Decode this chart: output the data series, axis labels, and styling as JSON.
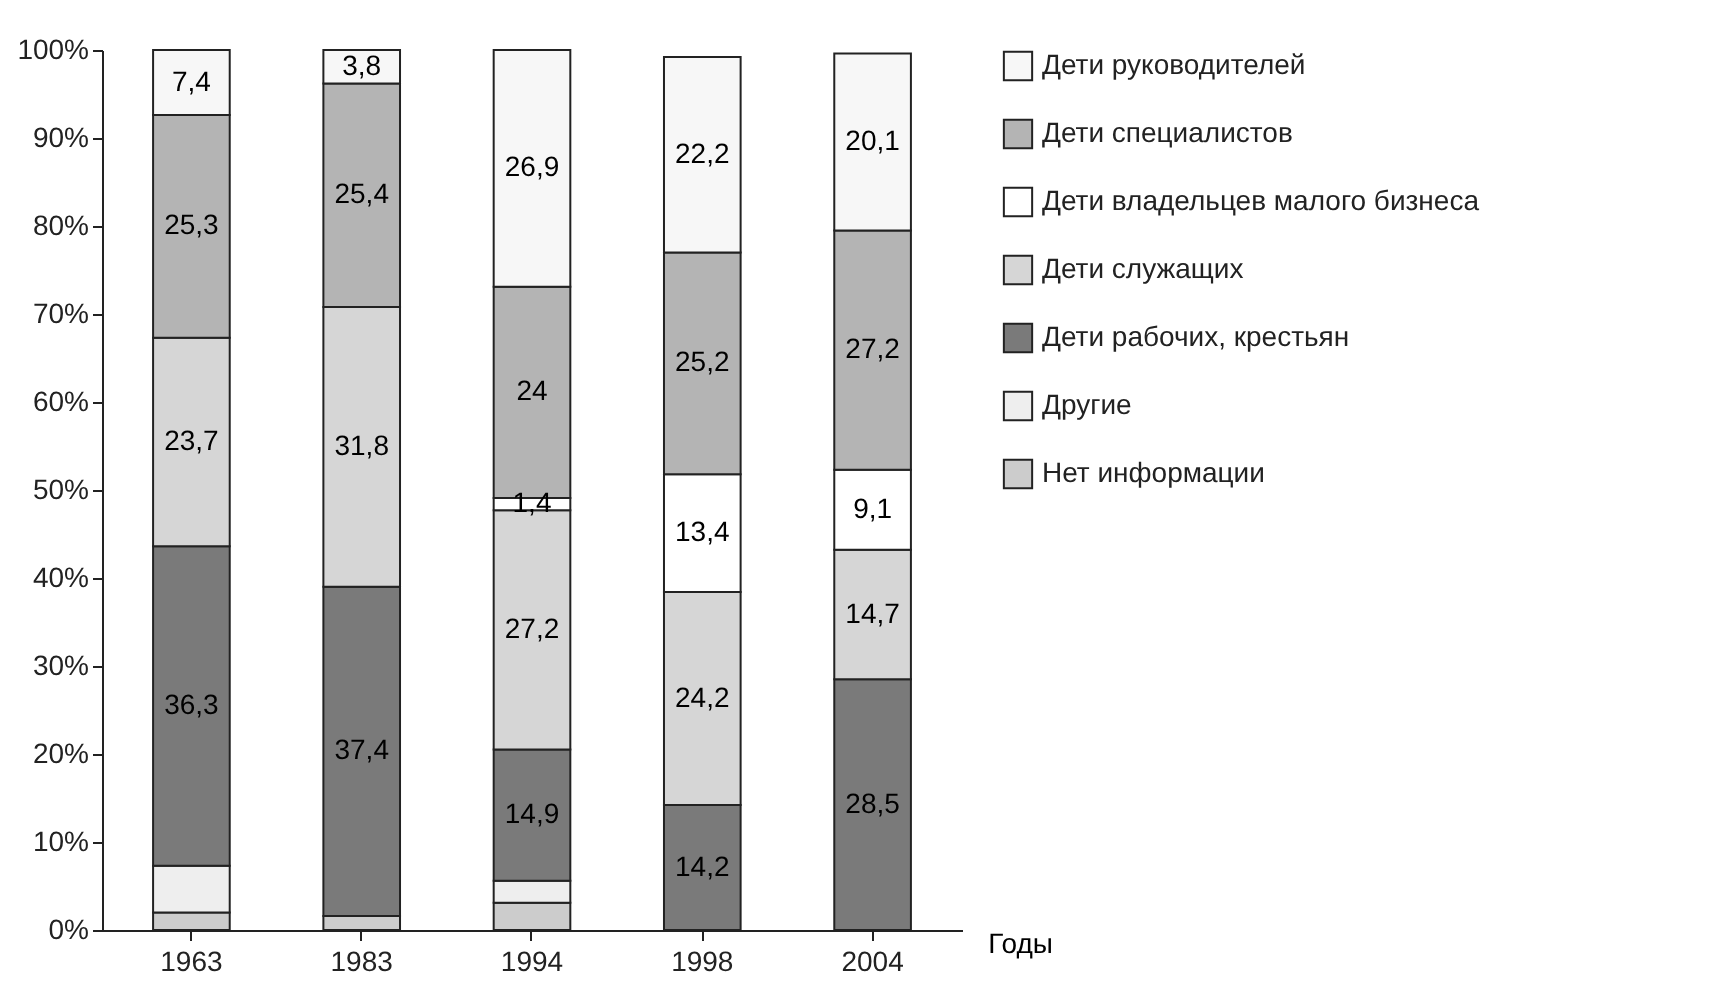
{
  "chart_data": {
    "type": "bar",
    "stacked": true,
    "xlabel": "Годы",
    "categories": [
      "1963",
      "1983",
      "1994",
      "1998",
      "2004"
    ],
    "ylim": [
      0,
      100
    ],
    "yticks": [
      {
        "value": 0,
        "label": "0%"
      },
      {
        "value": 10,
        "label": "10%"
      },
      {
        "value": 20,
        "label": "20%"
      },
      {
        "value": 30,
        "label": "30%"
      },
      {
        "value": 40,
        "label": "40%"
      },
      {
        "value": 50,
        "label": "50%"
      },
      {
        "value": 60,
        "label": "60%"
      },
      {
        "value": 70,
        "label": "70%"
      },
      {
        "value": 80,
        "label": "80%"
      },
      {
        "value": 90,
        "label": "90%"
      },
      {
        "value": 100,
        "label": "100%"
      }
    ],
    "grid": false,
    "legend": "right",
    "series": [
      {
        "name": "Нет информации",
        "color": "#cccccc",
        "values": [
          2.0,
          1.6,
          3.1,
          null,
          null
        ]
      },
      {
        "name": "Другие",
        "color": "#eeeeee",
        "values": [
          5.3,
          null,
          2.5,
          null,
          null
        ]
      },
      {
        "name": "Дети рабочих, крестьян",
        "color": "#7a7a7a",
        "values": [
          36.3,
          37.4,
          14.9,
          14.2,
          28.5
        ],
        "value_labels": [
          "36,3",
          "37,4",
          "14,9",
          "14,2",
          "28,5"
        ]
      },
      {
        "name": "Дети служащих",
        "color": "#d6d6d6",
        "values": [
          23.7,
          31.8,
          27.2,
          24.2,
          14.7
        ],
        "value_labels": [
          "23,7",
          "31,8",
          "27,2",
          "24,2",
          "14,7"
        ]
      },
      {
        "name": "Дети владельцев малого бизнеса",
        "color": "#ffffff",
        "values": [
          null,
          null,
          1.4,
          13.4,
          9.1
        ],
        "value_labels": [
          null,
          null,
          "1,4",
          "13,4",
          "9,1"
        ]
      },
      {
        "name": "Дети специалистов",
        "color": "#b4b4b4",
        "values": [
          25.3,
          25.4,
          24,
          25.2,
          27.2
        ],
        "value_labels": [
          "25,3",
          "25,4",
          "24",
          "25,2",
          "27,2"
        ]
      },
      {
        "name": "Дети руководителей",
        "color": "#f7f7f7",
        "values": [
          7.4,
          3.8,
          26.9,
          22.2,
          20.1
        ],
        "value_labels": [
          "7,4",
          "3,8",
          "26,9",
          "22,2",
          "20,1"
        ]
      }
    ]
  }
}
